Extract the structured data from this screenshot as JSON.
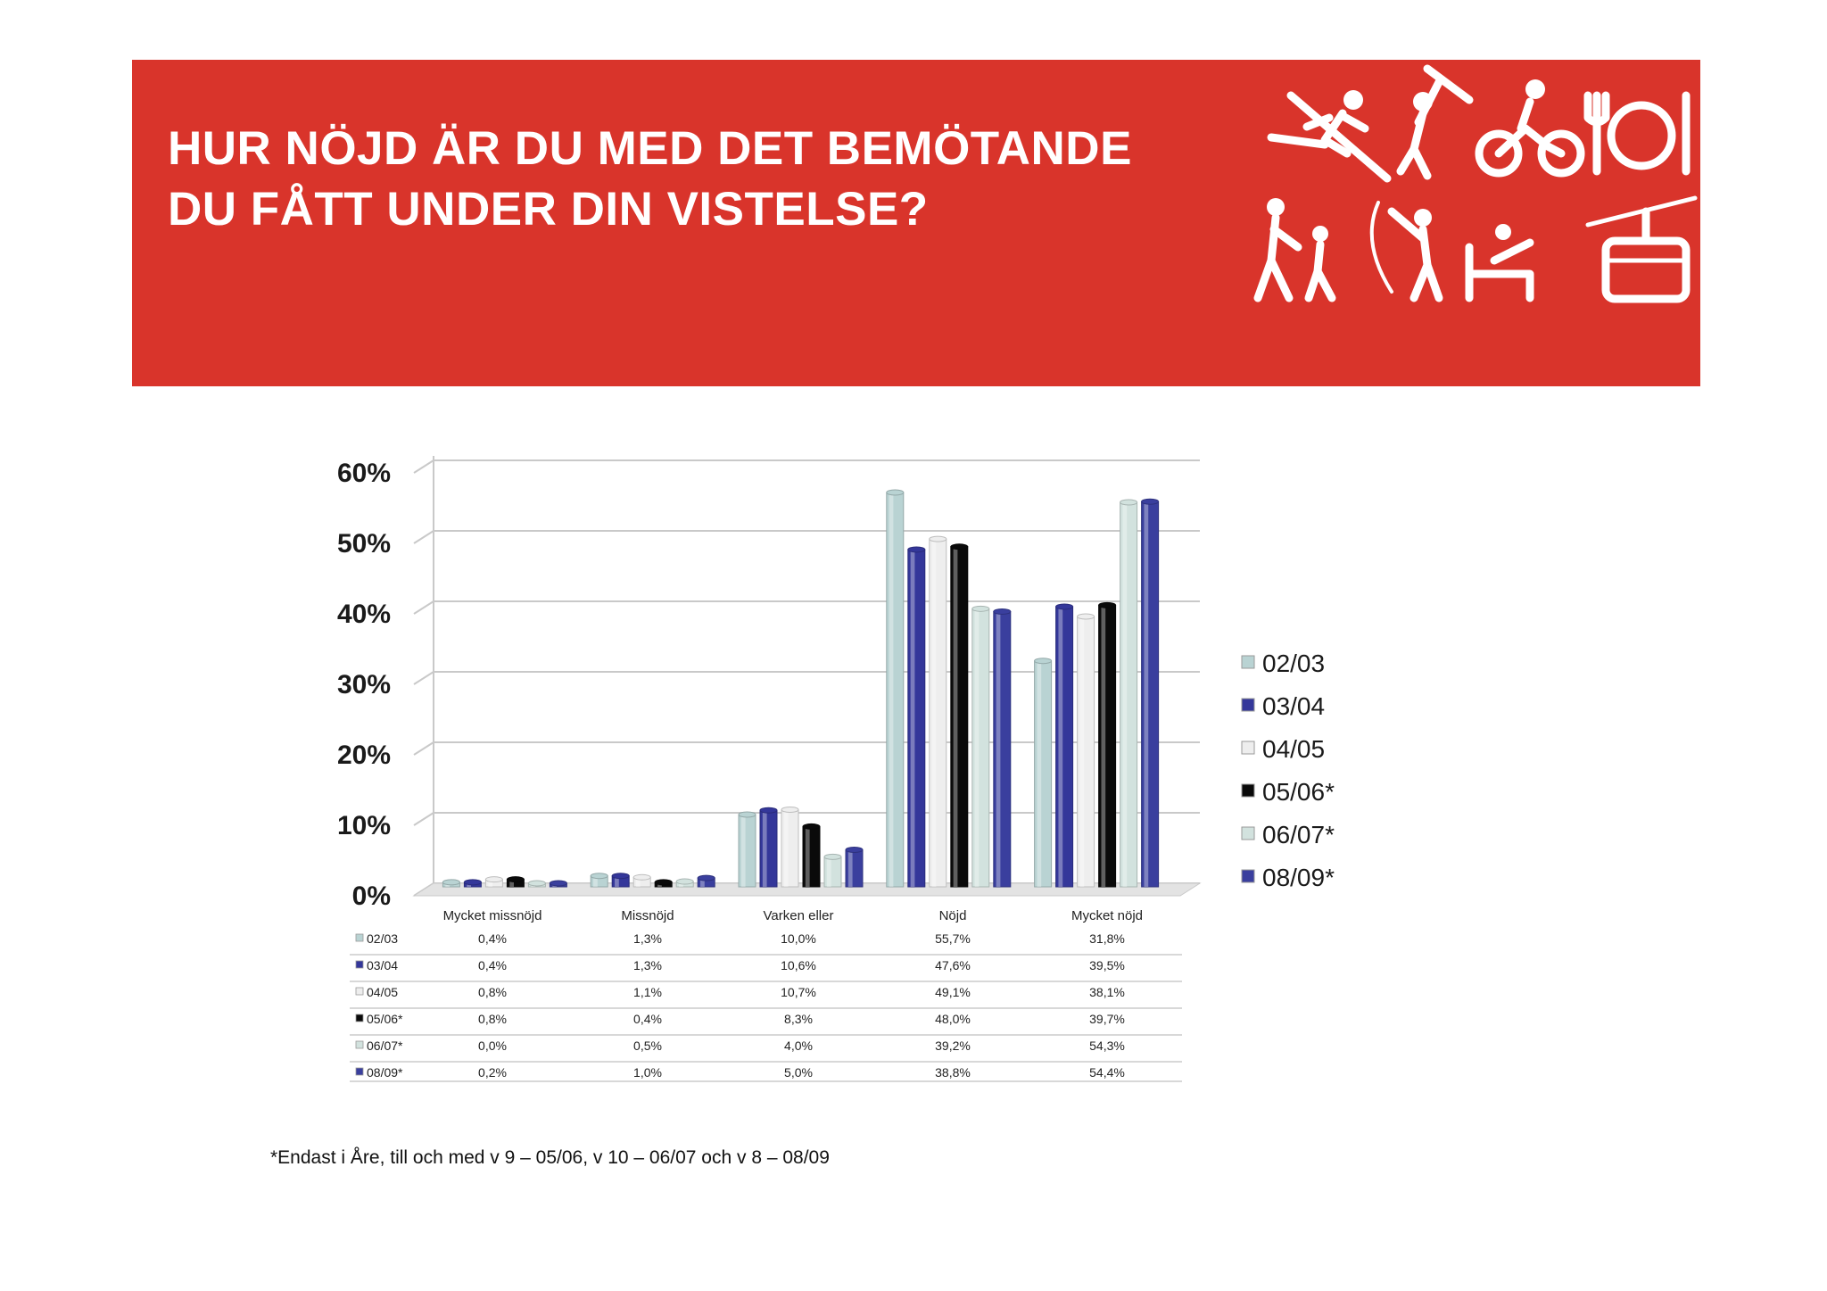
{
  "header": {
    "title_line1": "HUR NÖJD ÄR DU MED DET BEMÖTANDE",
    "title_line2": "DU FÅTT UNDER DIN VISTELSE?"
  },
  "icons": [
    "skier-icon",
    "climber-icon",
    "cyclist-icon",
    "fork-plate-knife-icon",
    "hikers-icon",
    "fishing-icon",
    "bed-icon",
    "cable-car-icon"
  ],
  "chart_data": {
    "type": "bar",
    "categories": [
      "Mycket missnöjd",
      "Missnöjd",
      "Varken eller",
      "Nöjd",
      "Mycket nöjd"
    ],
    "series": [
      {
        "name": "02/03",
        "values": [
          0.4,
          1.3,
          10.0,
          55.7,
          31.8
        ],
        "labels": [
          "0,4%",
          "1,3%",
          "10,0%",
          "55,7%",
          "31,8%"
        ],
        "color": "#b9d3d3"
      },
      {
        "name": "03/04",
        "values": [
          0.4,
          1.3,
          10.6,
          47.6,
          39.5
        ],
        "labels": [
          "0,4%",
          "1,3%",
          "10,6%",
          "47,6%",
          "39,5%"
        ],
        "color": "#34379a"
      },
      {
        "name": "04/05",
        "values": [
          0.8,
          1.1,
          10.7,
          49.1,
          38.1
        ],
        "labels": [
          "0,8%",
          "1,1%",
          "10,7%",
          "49,1%",
          "38,1%"
        ],
        "color": "#eeeeee"
      },
      {
        "name": "05/06*",
        "values": [
          0.8,
          0.4,
          8.3,
          48.0,
          39.7
        ],
        "labels": [
          "0,8%",
          "0,4%",
          "8,3%",
          "48,0%",
          "39,7%"
        ],
        "color": "#0a0a0a"
      },
      {
        "name": "06/07*",
        "values": [
          0.0,
          0.5,
          4.0,
          39.2,
          54.3
        ],
        "labels": [
          "0,0%",
          "0,5%",
          "4,0%",
          "39,2%",
          "54,3%"
        ],
        "color": "#d2e2de"
      },
      {
        "name": "08/09*",
        "values": [
          0.2,
          1.0,
          5.0,
          38.8,
          54.4
        ],
        "labels": [
          "0,2%",
          "1,0%",
          "5,0%",
          "38,8%",
          "54,4%"
        ],
        "color": "#3a3f9e"
      }
    ],
    "y_ticks": [
      "0%",
      "10%",
      "20%",
      "30%",
      "40%",
      "50%",
      "60%"
    ],
    "ylim": [
      0,
      60
    ],
    "grid": true,
    "legend": "right",
    "data_table": true
  },
  "footnote": "*Endast i Åre, till och med v 9 – 05/06, v 10 – 06/07 och v 8 – 08/09"
}
